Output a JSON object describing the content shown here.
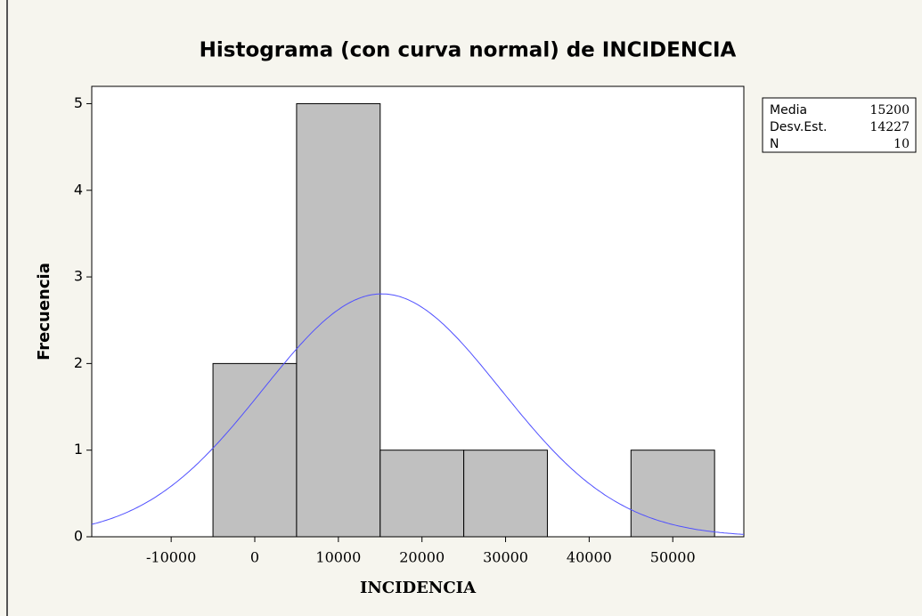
{
  "chart_data": {
    "type": "histogram",
    "title": "Histograma (con curva normal) de INCIDENCIA",
    "xlabel": "INCIDENCIA",
    "ylabel": "Frecuencia",
    "bins": [
      -5000,
      5000,
      15000,
      25000,
      35000,
      45000,
      55000
    ],
    "counts": [
      2,
      5,
      1,
      1,
      0,
      1
    ],
    "color": "#c0c0c0",
    "curve_color": "#5050ff",
    "xlim": [
      -19500,
      58500
    ],
    "xticks": [
      -10000,
      0,
      10000,
      20000,
      30000,
      40000,
      50000
    ],
    "ylim": [
      0,
      5.2
    ],
    "yticks": [
      0,
      1,
      2,
      3,
      4,
      5
    ],
    "stats": [
      {
        "label": "Media",
        "value": 15200
      },
      {
        "label": "Desv.Est.",
        "value": 14227
      },
      {
        "label": "N",
        "value": 10
      }
    ]
  }
}
